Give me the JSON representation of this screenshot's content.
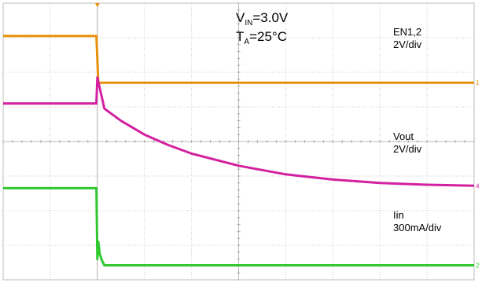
{
  "chart_data": {
    "type": "line",
    "title": "",
    "annotations": {
      "v_label": "V",
      "v_sub": "IN",
      "v_value": "=3.0V",
      "t_label": "T",
      "t_sub": "A",
      "t_value": "=25°C"
    },
    "grid": true,
    "x_divisions": 10,
    "y_divisions": 8,
    "event_x_div": 2.0,
    "series": [
      {
        "name": "EN1,2",
        "scale": "2V/div",
        "color": "#e8900a",
        "unit": "V",
        "marker": "1",
        "x_div": [
          0,
          1.98,
          2.02,
          10
        ],
        "y_div": [
          7.05,
          7.05,
          5.7,
          5.7
        ]
      },
      {
        "name": "Vout",
        "scale": "2V/div",
        "color": "#d4209f",
        "unit": "V",
        "marker": "4",
        "x_div": [
          0,
          1.98,
          2.0,
          2.15,
          2.5,
          3.0,
          3.5,
          4.0,
          5.0,
          6.0,
          7.0,
          8.0,
          9.0,
          10
        ],
        "y_div": [
          5.1,
          5.1,
          5.85,
          4.95,
          4.6,
          4.2,
          3.9,
          3.65,
          3.3,
          3.05,
          2.9,
          2.8,
          2.75,
          2.72
        ]
      },
      {
        "name": "Iin",
        "scale": "300mA/div",
        "color": "#2ec82e",
        "unit": "mA",
        "marker": "2",
        "x_div": [
          0,
          1.98,
          2.0,
          2.02,
          2.05,
          2.1,
          2.15,
          10
        ],
        "y_div": [
          2.65,
          2.65,
          0.6,
          1.1,
          0.75,
          0.55,
          0.42,
          0.42
        ]
      }
    ]
  }
}
